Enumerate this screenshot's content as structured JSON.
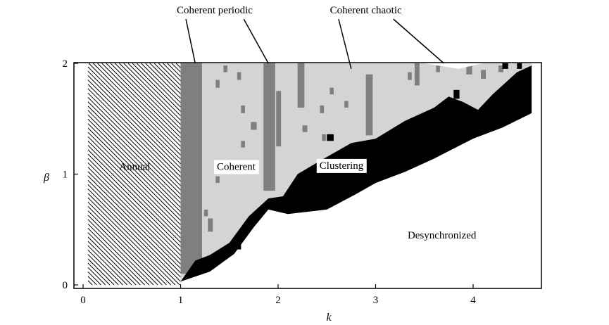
{
  "chart_data": {
    "type": "heatmap",
    "xlabel": "k",
    "ylabel": "β",
    "xlim": [
      0,
      4.8
    ],
    "ylim": [
      0,
      2
    ],
    "x_ticks": [
      "0",
      "1",
      "2",
      "3",
      "4"
    ],
    "y_ticks": [
      "0",
      "1",
      "2"
    ],
    "colors": {
      "coherent": "#d4d4d4",
      "coherent_periodic": "#7f7f7f",
      "clustering": "#000000",
      "desynchronized": "#ffffff",
      "annual_hatch": "#000000"
    },
    "regions": [
      {
        "key": "annual",
        "label": "Annual",
        "k_range": [
          0.05,
          1.0
        ],
        "beta_range": [
          0,
          2
        ],
        "fill": "hatched"
      },
      {
        "key": "coherent",
        "label": "Coherent",
        "fill": "light-grey"
      },
      {
        "key": "clustering",
        "label": "Clustering",
        "fill": "black"
      },
      {
        "key": "desynchronized",
        "label": "Desynchronized",
        "fill": "white"
      }
    ],
    "annotations": [
      {
        "label": "Coherent periodic",
        "text_at": {
          "k": 1.35,
          "beta": 2.45
        },
        "pointers": [
          {
            "k": 1.15,
            "beta": 2.0
          },
          {
            "k": 1.9,
            "beta": 2.0
          }
        ]
      },
      {
        "label": "Coherent chaotic",
        "text_at": {
          "k": 2.9,
          "beta": 2.45
        },
        "pointers": [
          {
            "k": 2.75,
            "beta": 1.95
          },
          {
            "k": 3.7,
            "beta": 2.0
          }
        ]
      }
    ],
    "boundaries": {
      "upper_edge": [
        [
          1.0,
          2.0
        ],
        [
          3.5,
          2.0
        ],
        [
          3.85,
          1.95
        ],
        [
          4.1,
          2.0
        ],
        [
          4.6,
          2.0
        ]
      ],
      "coherent_lower": [
        [
          1.0,
          0.03
        ],
        [
          1.15,
          0.22
        ],
        [
          1.3,
          0.27
        ],
        [
          1.5,
          0.38
        ],
        [
          1.7,
          0.62
        ],
        [
          1.9,
          0.78
        ],
        [
          2.05,
          0.8
        ],
        [
          2.2,
          1.0
        ],
        [
          2.45,
          1.13
        ],
        [
          2.75,
          1.28
        ],
        [
          3.0,
          1.32
        ],
        [
          3.3,
          1.48
        ],
        [
          3.6,
          1.6
        ],
        [
          3.75,
          1.7
        ],
        [
          3.9,
          1.65
        ],
        [
          4.05,
          1.58
        ],
        [
          4.2,
          1.72
        ],
        [
          4.45,
          1.92
        ],
        [
          4.6,
          1.98
        ]
      ],
      "clustering_lower": [
        [
          1.0,
          0.03
        ],
        [
          1.3,
          0.12
        ],
        [
          1.55,
          0.28
        ],
        [
          1.75,
          0.52
        ],
        [
          1.9,
          0.68
        ],
        [
          2.1,
          0.64
        ],
        [
          2.5,
          0.68
        ],
        [
          2.8,
          0.82
        ],
        [
          3.0,
          0.92
        ],
        [
          3.3,
          1.02
        ],
        [
          3.6,
          1.14
        ],
        [
          4.0,
          1.32
        ],
        [
          4.3,
          1.42
        ],
        [
          4.6,
          1.55
        ]
      ]
    },
    "periodic_columns": [
      {
        "k_range": [
          1.0,
          1.22
        ],
        "beta_range": [
          0.1,
          2.0
        ]
      },
      {
        "k_range": [
          1.85,
          1.97
        ],
        "beta_range": [
          0.85,
          2.0
        ]
      },
      {
        "k_range": [
          2.9,
          2.97
        ],
        "beta_range": [
          1.35,
          1.9
        ]
      },
      {
        "k_range": [
          2.2,
          2.27
        ],
        "beta_range": [
          1.6,
          2.0
        ]
      },
      {
        "k_range": [
          3.4,
          3.45
        ],
        "beta_range": [
          1.8,
          2.0
        ]
      },
      {
        "k_range": [
          3.93,
          3.99
        ],
        "beta_range": [
          1.9,
          2.0
        ]
      },
      {
        "k_range": [
          1.98,
          2.03
        ],
        "beta_range": [
          1.25,
          1.75
        ]
      }
    ],
    "periodic_patches": [
      {
        "k_range": [
          1.36,
          1.4
        ],
        "beta_range": [
          1.78,
          1.85
        ]
      },
      {
        "k_range": [
          1.44,
          1.48
        ],
        "beta_range": [
          1.92,
          1.98
        ]
      },
      {
        "k_range": [
          1.58,
          1.62
        ],
        "beta_range": [
          1.85,
          1.92
        ]
      },
      {
        "k_range": [
          1.62,
          1.66
        ],
        "beta_range": [
          1.55,
          1.62
        ]
      },
      {
        "k_range": [
          1.72,
          1.78
        ],
        "beta_range": [
          1.4,
          1.47
        ]
      },
      {
        "k_range": [
          1.62,
          1.66
        ],
        "beta_range": [
          1.24,
          1.3
        ]
      },
      {
        "k_range": [
          1.44,
          1.48
        ],
        "beta_range": [
          1.0,
          1.06
        ]
      },
      {
        "k_range": [
          1.36,
          1.4
        ],
        "beta_range": [
          0.92,
          0.98
        ]
      },
      {
        "k_range": [
          1.24,
          1.28
        ],
        "beta_range": [
          0.62,
          0.68
        ]
      },
      {
        "k_range": [
          1.28,
          1.33
        ],
        "beta_range": [
          0.48,
          0.6
        ]
      },
      {
        "k_range": [
          2.25,
          2.3
        ],
        "beta_range": [
          1.38,
          1.44
        ]
      },
      {
        "k_range": [
          2.43,
          2.47
        ],
        "beta_range": [
          1.55,
          1.62
        ]
      },
      {
        "k_range": [
          2.53,
          2.57
        ],
        "beta_range": [
          1.72,
          1.78
        ]
      },
      {
        "k_range": [
          2.68,
          2.72
        ],
        "beta_range": [
          1.6,
          1.66
        ]
      },
      {
        "k_range": [
          2.45,
          2.49
        ],
        "beta_range": [
          1.3,
          1.36
        ]
      },
      {
        "k_range": [
          3.33,
          3.37
        ],
        "beta_range": [
          1.85,
          1.92
        ]
      },
      {
        "k_range": [
          3.62,
          3.66
        ],
        "beta_range": [
          1.92,
          1.98
        ]
      },
      {
        "k_range": [
          4.08,
          4.13
        ],
        "beta_range": [
          1.86,
          1.94
        ]
      },
      {
        "k_range": [
          4.26,
          4.31
        ],
        "beta_range": [
          1.92,
          1.98
        ]
      }
    ],
    "cluster_spots": [
      {
        "k_range": [
          3.8,
          3.86
        ],
        "beta_range": [
          1.68,
          1.76
        ]
      },
      {
        "k_range": [
          2.95,
          3.04
        ],
        "beta_range": [
          1.0,
          1.1
        ]
      },
      {
        "k_range": [
          3.06,
          3.13
        ],
        "beta_range": [
          1.14,
          1.22
        ]
      },
      {
        "k_range": [
          1.55,
          1.62
        ],
        "beta_range": [
          0.32,
          0.4
        ]
      },
      {
        "k_range": [
          2.5,
          2.57
        ],
        "beta_range": [
          1.3,
          1.36
        ]
      },
      {
        "k_range": [
          1.72,
          1.78
        ],
        "beta_range": [
          0.56,
          0.62
        ]
      },
      {
        "k_range": [
          2.08,
          2.14
        ],
        "beta_range": [
          0.72,
          0.78
        ]
      },
      {
        "k_range": [
          3.6,
          3.66
        ],
        "beta_range": [
          1.5,
          1.56
        ]
      },
      {
        "k_range": [
          4.3,
          4.36
        ],
        "beta_range": [
          1.95,
          2.0
        ]
      },
      {
        "k_range": [
          4.45,
          4.5
        ],
        "beta_range": [
          1.95,
          2.0
        ]
      }
    ]
  }
}
